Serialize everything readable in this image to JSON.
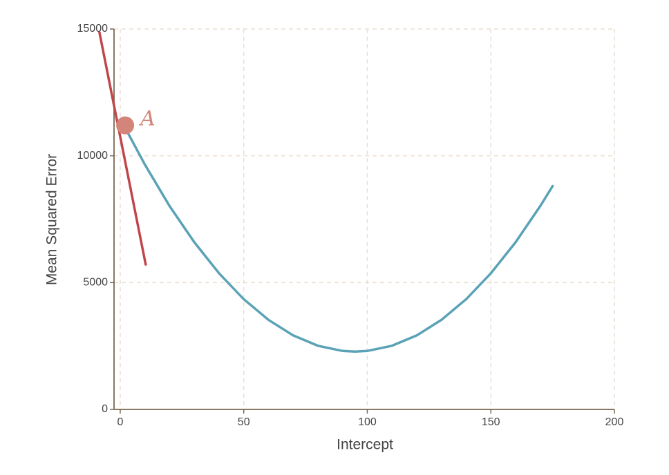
{
  "chart_data": {
    "type": "line",
    "x_label": "Intercept",
    "y_label": "Mean Squared Error",
    "series": [
      {
        "color": "#5aa2b6",
        "x": [
          2,
          10,
          20,
          30,
          40,
          50,
          60,
          70,
          80,
          90,
          95,
          100,
          110,
          120,
          130,
          140,
          150,
          160,
          170,
          175
        ],
        "values": [
          11102,
          9650,
          8018,
          6590,
          5366,
          4346,
          3530,
          2918,
          2510,
          2306,
          2280,
          2306,
          2510,
          2918,
          3530,
          4346,
          5366,
          6590,
          8018,
          8808
        ]
      },
      {
        "color": "#c0464a",
        "x": [
          -8.4,
          10.3
        ],
        "values": [
          14865,
          5717
        ]
      }
    ],
    "points": [
      {
        "label": "A",
        "x": 2,
        "y": 11200,
        "color": "#d4857a"
      }
    ],
    "xlim": [
      -2.5,
      200
    ],
    "xticks": [
      0,
      50,
      100,
      150,
      200
    ],
    "ylim": [
      0,
      15000
    ],
    "yticks": [
      0,
      5000,
      10000,
      15000
    ],
    "grid": true
  }
}
